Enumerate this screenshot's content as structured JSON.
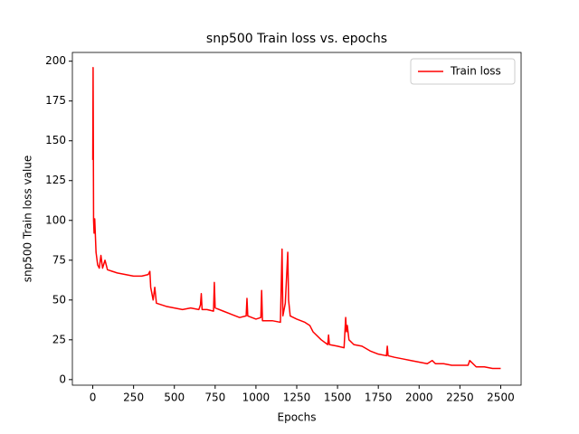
{
  "chart_data": {
    "type": "line",
    "title": "snp500 Train loss vs. epochs",
    "xlabel": "Epochs",
    "ylabel": "snp500 Train loss value",
    "legend": "upper right",
    "grid": false,
    "xlim": [
      -125,
      2625
    ],
    "ylim": [
      -3.5,
      205.5
    ],
    "xticks": [
      0,
      250,
      500,
      750,
      1000,
      1250,
      1500,
      1750,
      2000,
      2250,
      2500
    ],
    "yticks": [
      0,
      25,
      50,
      75,
      100,
      125,
      150,
      175,
      200
    ],
    "x": [
      0,
      2,
      5,
      8,
      12,
      20,
      30,
      40,
      50,
      60,
      75,
      90,
      120,
      150,
      200,
      250,
      300,
      340,
      350,
      355,
      370,
      380,
      390,
      420,
      450,
      500,
      550,
      600,
      650,
      660,
      665,
      670,
      700,
      740,
      745,
      750,
      800,
      850,
      900,
      940,
      945,
      950,
      1000,
      1030,
      1035,
      1040,
      1100,
      1150,
      1160,
      1165,
      1180,
      1195,
      1200,
      1210,
      1250,
      1300,
      1330,
      1350,
      1400,
      1440,
      1445,
      1450,
      1500,
      1540,
      1550,
      1555,
      1560,
      1570,
      1600,
      1650,
      1700,
      1750,
      1800,
      1805,
      1810,
      1850,
      1900,
      1950,
      2000,
      2050,
      2080,
      2100,
      2150,
      2200,
      2250,
      2300,
      2310,
      2350,
      2400,
      2450,
      2500
    ],
    "series": [
      {
        "name": "Train loss",
        "color": "#ff0000",
        "values": [
          138,
          196,
          100,
          92,
          101,
          80,
          72,
          70,
          78,
          70,
          75,
          69,
          68,
          67,
          66,
          65,
          65,
          66,
          68,
          58,
          50,
          58,
          48,
          47,
          46,
          45,
          44,
          45,
          44,
          47,
          54,
          44,
          44,
          43,
          61,
          45,
          43,
          41,
          39,
          40,
          51,
          40,
          38,
          39,
          56,
          37,
          37,
          36,
          82,
          40,
          48,
          80,
          50,
          40,
          38,
          36,
          34,
          30,
          25,
          22,
          28,
          22,
          21,
          20,
          39,
          30,
          34,
          25,
          22,
          21,
          18,
          16,
          15,
          21,
          15,
          14,
          13,
          12,
          11,
          10,
          12,
          10,
          10,
          9,
          9,
          9,
          12,
          8,
          8,
          7,
          7
        ]
      }
    ]
  }
}
